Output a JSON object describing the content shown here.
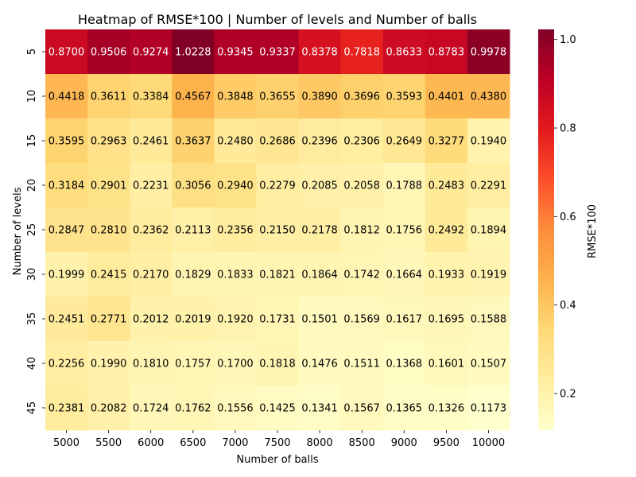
{
  "chart_data": {
    "type": "heatmap",
    "title": "Heatmap of RMSE*100 | Number of levels and Number of balls",
    "xlabel": "Number of balls",
    "ylabel": "Number of levels",
    "x_categories": [
      "5000",
      "5500",
      "6000",
      "6500",
      "7000",
      "7500",
      "8000",
      "8500",
      "9000",
      "9500",
      "10000"
    ],
    "y_categories": [
      "5",
      "10",
      "15",
      "20",
      "25",
      "30",
      "35",
      "40",
      "45"
    ],
    "values": [
      [
        0.87,
        0.9506,
        0.9274,
        1.0228,
        0.9345,
        0.9337,
        0.8378,
        0.7818,
        0.8633,
        0.8783,
        0.9978
      ],
      [
        0.4418,
        0.3611,
        0.3384,
        0.4567,
        0.3848,
        0.3655,
        0.389,
        0.3696,
        0.3593,
        0.4401,
        0.438
      ],
      [
        0.3595,
        0.2963,
        0.2461,
        0.3637,
        0.248,
        0.2686,
        0.2396,
        0.2306,
        0.2649,
        0.3277,
        0.194
      ],
      [
        0.3184,
        0.2901,
        0.2231,
        0.3056,
        0.294,
        0.2279,
        0.2085,
        0.2058,
        0.1788,
        0.2483,
        0.2291
      ],
      [
        0.2847,
        0.281,
        0.2362,
        0.2113,
        0.2356,
        0.215,
        0.2178,
        0.1812,
        0.1756,
        0.2492,
        0.1894
      ],
      [
        0.1999,
        0.2415,
        0.217,
        0.1829,
        0.1833,
        0.1821,
        0.1864,
        0.1742,
        0.1664,
        0.1933,
        0.1919
      ],
      [
        0.2451,
        0.2771,
        0.2012,
        0.2019,
        0.192,
        0.1731,
        0.1501,
        0.1569,
        0.1617,
        0.1695,
        0.1588
      ],
      [
        0.2256,
        0.199,
        0.181,
        0.1757,
        0.17,
        0.1818,
        0.1476,
        0.1511,
        0.1368,
        0.1601,
        0.1507
      ],
      [
        0.2381,
        0.2082,
        0.1724,
        0.1762,
        0.1556,
        0.1425,
        0.1341,
        0.1567,
        0.1365,
        0.1326,
        0.1173
      ]
    ],
    "value_format_decimals": 4,
    "colormap": "YlOrRd",
    "colorbar": {
      "label": "RMSE*100",
      "range": [
        0.1173,
        1.0228
      ],
      "ticks": [
        0.2,
        0.4,
        0.6,
        0.8,
        1.0
      ],
      "tick_labels": [
        "0.2",
        "0.4",
        "0.6",
        "0.8",
        "1.0"
      ]
    },
    "colors": [
      "#ffffcc",
      "#ffeda0",
      "#fed976",
      "#feb24c",
      "#fd8d3c",
      "#fc4e2a",
      "#e31a1c",
      "#bd0026",
      "#800026"
    ]
  }
}
